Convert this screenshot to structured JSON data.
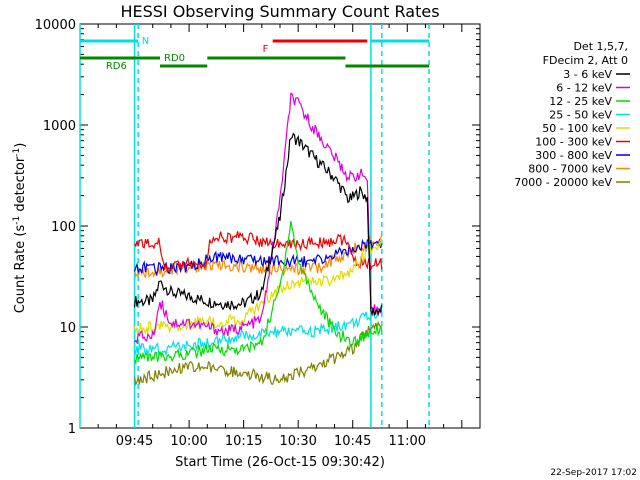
{
  "chart_data": {
    "type": "line",
    "title": "HESSI Observing Summary Count Rates",
    "xlabel": "Start Time (26-Oct-15 09:30:42)",
    "ylabel_main": "Count Rate (s",
    "ylabel_sup1": "-1",
    "ylabel_mid": " detector",
    "ylabel_sup2": "-1",
    "ylabel_end": ")",
    "yscale": "log",
    "ylim": [
      1,
      10000
    ],
    "xlim": [
      "09:30",
      "11:20"
    ],
    "x_ticks": [
      "09:45",
      "10:00",
      "10:15",
      "10:30",
      "10:45",
      "11:00"
    ],
    "y_ticks": [
      "1",
      "10",
      "100",
      "1000",
      "10000"
    ],
    "legend": {
      "position": "right",
      "header": [
        "Det 1,5,7,",
        "FDecim 2, Att 0"
      ],
      "entries": [
        {
          "label": "3 - 6 keV",
          "color": "#000000"
        },
        {
          "label": "6 - 12 keV",
          "color": "#dd00dd"
        },
        {
          "label": "12 - 25 keV",
          "color": "#00dd00"
        },
        {
          "label": "25 - 50 keV",
          "color": "#00e0e0"
        },
        {
          "label": "50 - 100 keV",
          "color": "#dddd00"
        },
        {
          "label": "100 - 300 keV",
          "color": "#ee0000"
        },
        {
          "label": "300 - 800 keV",
          "color": "#0000dd"
        },
        {
          "label": "800 - 7000 keV",
          "color": "#ff8800"
        },
        {
          "label": "7000 - 20000 keV",
          "color": "#808000"
        }
      ]
    },
    "annotations": [
      {
        "text": "N",
        "color": "#00e0e0"
      },
      {
        "text": "RD0",
        "color": "#008800"
      },
      {
        "text": "RD6",
        "color": "#008800"
      },
      {
        "text": "F",
        "color": "#ee0000"
      }
    ],
    "bars": [
      {
        "label": "N",
        "color": "#00e0e0",
        "row": "top",
        "x": [
          "09:30",
          "09:46"
        ]
      },
      {
        "label": "N",
        "color": "#00e0e0",
        "row": "top",
        "x": [
          "10:50",
          "11:06"
        ]
      },
      {
        "label": "F",
        "color": "#ee0000",
        "row": "top",
        "x": [
          "10:23",
          "10:49"
        ]
      },
      {
        "label": "RD6",
        "color": "#008800",
        "row": "mid",
        "x": [
          "09:30",
          "09:52"
        ]
      },
      {
        "label": "RD0",
        "color": "#008800",
        "row": "mid",
        "x": [
          "10:05",
          "10:43"
        ]
      },
      {
        "label": "",
        "color": "#008800",
        "row": "low",
        "x": [
          "09:52",
          "10:05"
        ]
      },
      {
        "label": "",
        "color": "#008800",
        "row": "low",
        "x": [
          "10:43",
          "11:06"
        ]
      }
    ],
    "vlines": [
      {
        "color": "#00e0e0",
        "style": "solid",
        "x": "09:30"
      },
      {
        "color": "#00e0e0",
        "style": "solid",
        "x": "09:45"
      },
      {
        "color": "#00e0e0",
        "style": "dashed",
        "x": "09:46"
      },
      {
        "color": "#00e0e0",
        "style": "solid",
        "x": "10:50"
      },
      {
        "color": "#00e0e0",
        "style": "dashed",
        "x": "10:53"
      },
      {
        "color": "#00e0e0",
        "style": "dashed",
        "x": "11:06"
      }
    ],
    "data_range": [
      "09:45",
      "10:53"
    ],
    "series": [
      {
        "name": "3 - 6 keV",
        "color": "#000000",
        "x": [
          "09:45",
          "09:50",
          "09:52",
          "09:55",
          "10:00",
          "10:05",
          "10:10",
          "10:15",
          "10:20",
          "10:25",
          "10:28",
          "10:30",
          "10:35",
          "10:40",
          "10:44",
          "10:47",
          "10:49",
          "10:50",
          "10:53"
        ],
        "y": [
          18,
          18,
          28,
          22,
          20,
          18,
          17,
          17,
          22,
          120,
          780,
          700,
          450,
          300,
          180,
          220,
          190,
          14,
          15
        ]
      },
      {
        "name": "6 - 12 keV",
        "color": "#dd00dd",
        "x": [
          "09:45",
          "09:50",
          "09:52",
          "09:55",
          "10:00",
          "10:05",
          "10:10",
          "10:15",
          "10:20",
          "10:25",
          "10:28",
          "10:30",
          "10:35",
          "10:40",
          "10:44",
          "10:47",
          "10:49",
          "10:50",
          "10:53"
        ],
        "y": [
          8,
          8,
          18,
          11,
          11,
          10,
          9,
          10,
          12,
          180,
          1900,
          1600,
          850,
          480,
          300,
          330,
          290,
          14,
          16
        ]
      },
      {
        "name": "12 - 25 keV",
        "color": "#00dd00",
        "x": [
          "09:45",
          "09:52",
          "10:00",
          "10:05",
          "10:15",
          "10:20",
          "10:25",
          "10:28",
          "10:30",
          "10:35",
          "10:40",
          "10:45",
          "10:50",
          "10:53"
        ],
        "y": [
          5,
          5,
          5.5,
          6,
          6,
          7,
          25,
          110,
          45,
          18,
          9,
          7,
          9,
          10
        ]
      },
      {
        "name": "25 - 50 keV",
        "color": "#00e0e0",
        "x": [
          "09:45",
          "09:52",
          "10:00",
          "10:05",
          "10:15",
          "10:25",
          "10:35",
          "10:45",
          "10:50",
          "10:53"
        ],
        "y": [
          6,
          6,
          6.5,
          7,
          8,
          9,
          9,
          11,
          13,
          15
        ]
      },
      {
        "name": "50 - 100 keV",
        "color": "#dddd00",
        "x": [
          "09:45",
          "09:52",
          "10:00",
          "10:05",
          "10:15",
          "10:25",
          "10:30",
          "10:40",
          "10:45",
          "10:50",
          "10:53"
        ],
        "y": [
          10,
          10,
          11,
          11,
          12,
          25,
          28,
          28,
          38,
          60,
          70
        ]
      },
      {
        "name": "100 - 300 keV",
        "color": "#ee0000",
        "x": [
          "09:45",
          "09:52",
          "09:53",
          "10:00",
          "10:05",
          "10:06",
          "10:15",
          "10:25",
          "10:35",
          "10:43",
          "10:45",
          "10:50",
          "10:53"
        ],
        "y": [
          68,
          68,
          40,
          42,
          44,
          78,
          78,
          65,
          68,
          75,
          45,
          42,
          42
        ]
      },
      {
        "name": "300 - 800 keV",
        "color": "#0000dd",
        "x": [
          "09:45",
          "09:52",
          "10:00",
          "10:05",
          "10:15",
          "10:25",
          "10:35",
          "10:45",
          "10:50",
          "10:53"
        ],
        "y": [
          38,
          38,
          40,
          48,
          48,
          44,
          45,
          60,
          65,
          68
        ]
      },
      {
        "name": "800 - 7000 keV",
        "color": "#ff8800",
        "x": [
          "09:45",
          "09:52",
          "10:00",
          "10:05",
          "10:15",
          "10:25",
          "10:35",
          "10:45",
          "10:50",
          "10:53"
        ],
        "y": [
          34,
          36,
          38,
          42,
          40,
          36,
          38,
          58,
          70,
          72
        ]
      },
      {
        "name": "7000 - 20000 keV",
        "color": "#808000",
        "x": [
          "09:45",
          "09:52",
          "10:00",
          "10:05",
          "10:15",
          "10:25",
          "10:35",
          "10:45",
          "10:50",
          "10:53"
        ],
        "y": [
          2.8,
          3.5,
          4,
          4,
          3.5,
          3,
          4,
          6,
          10,
          10
        ]
      }
    ],
    "grid": false
  },
  "footer": {
    "date": "22-Sep-2017 17:02"
  }
}
